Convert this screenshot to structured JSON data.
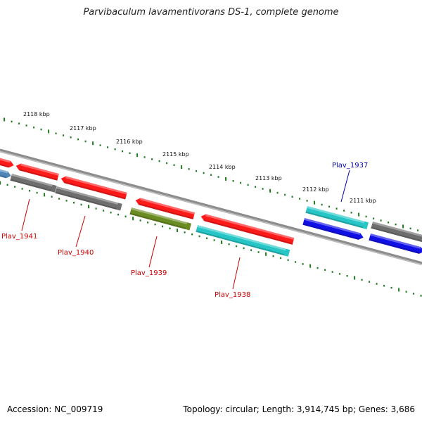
{
  "title": "Parvibaculum lavamentivorans DS-1, complete genome",
  "footer": {
    "accession": "Accession: NC_009719",
    "topology": "Topology: circular; Length: 3,914,745 bp; Genes: 3,686"
  },
  "colors": {
    "tick": "#1f7a1f",
    "backbone": "#8c8c8c",
    "red": "#ff1a1a",
    "gray": "#6e6e6e",
    "cyan": "#27c6c6",
    "olive": "#6b8c23",
    "blue": "#1010e6",
    "steelblue": "#4f86b8",
    "label_red": "#cc0000",
    "label_blue": "#0000aa"
  },
  "scale_labels": [
    {
      "text": "2118 kbp",
      "pos": 2118
    },
    {
      "text": "2117 kbp",
      "pos": 2117
    },
    {
      "text": "2116 kbp",
      "pos": 2116
    },
    {
      "text": "2115 kbp",
      "pos": 2115
    },
    {
      "text": "2114 kbp",
      "pos": 2114
    },
    {
      "text": "2113 kbp",
      "pos": 2113
    },
    {
      "text": "2112 kbp",
      "pos": 2112
    },
    {
      "text": "2111 kbp",
      "pos": 2111
    }
  ],
  "gene_labels": [
    {
      "text": "Plav_1941",
      "color": "label_red"
    },
    {
      "text": "Plav_1940",
      "color": "label_red"
    },
    {
      "text": "Plav_1939",
      "color": "label_red"
    },
    {
      "text": "Plav_1938",
      "color": "label_red"
    },
    {
      "text": "Plav_1937",
      "color": "label_blue"
    }
  ]
}
